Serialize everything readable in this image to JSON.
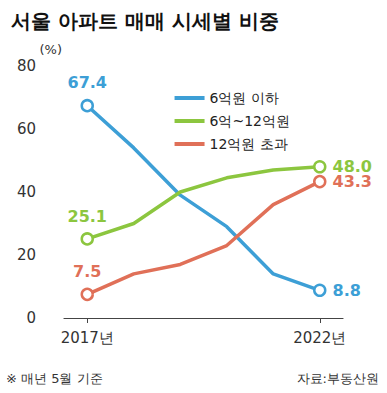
{
  "chart_data": {
    "type": "line",
    "title": "서울 아파트 매매 시세별 비중",
    "y_label": "(%)",
    "categories": [
      "2017년",
      null,
      null,
      null,
      null,
      "2022년"
    ],
    "series": [
      {
        "name": "6억원 이하",
        "color": "#3d9fd6",
        "values": [
          67.4,
          54,
          39,
          29,
          14,
          8.8
        ],
        "value_labels": [
          "67.4",
          null,
          null,
          null,
          null,
          "8.8"
        ]
      },
      {
        "name": "6억~12억원",
        "color": "#8cc63f",
        "values": [
          25.1,
          30,
          40,
          44.5,
          47,
          48.0
        ],
        "value_labels": [
          "25.1",
          null,
          null,
          null,
          null,
          "48.0"
        ]
      },
      {
        "name": "12억원 초과",
        "color": "#e07058",
        "values": [
          7.5,
          14,
          17,
          23,
          36,
          43.3
        ],
        "value_labels": [
          "7.5",
          null,
          null,
          null,
          null,
          "43.3"
        ]
      }
    ],
    "ylim": [
      0,
      80
    ],
    "yticks": [
      0,
      20,
      40,
      60,
      80
    ],
    "grid": false,
    "legend": "top right",
    "marker": "circle",
    "data_labels": true,
    "note": "※ 매년 5월 기준",
    "source": "자료:부동산원"
  }
}
